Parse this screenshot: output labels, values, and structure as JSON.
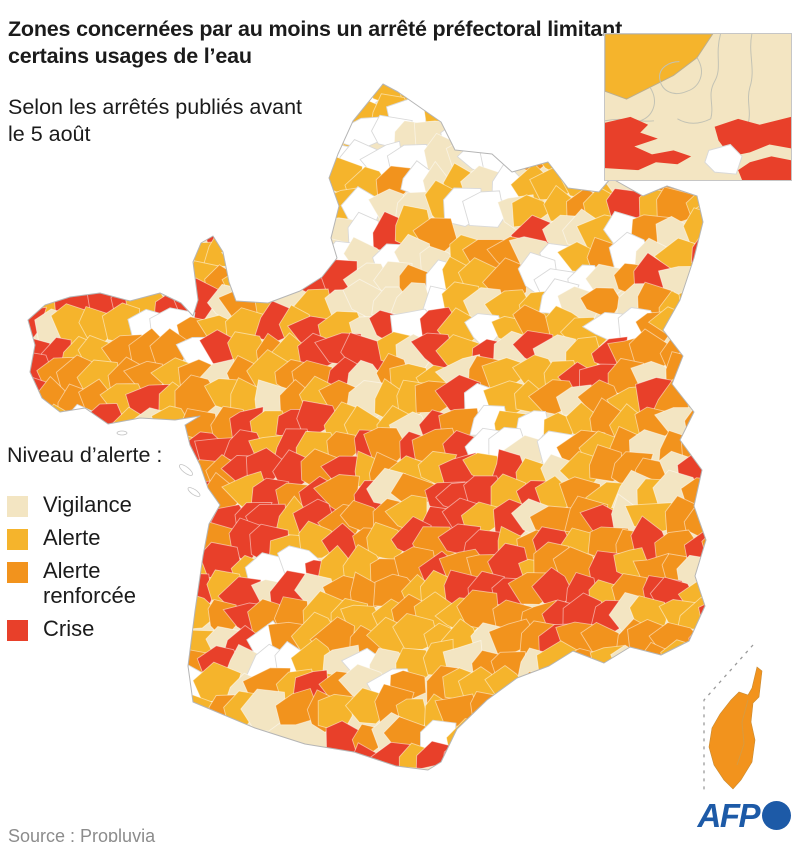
{
  "header": {
    "title": "Zones concernées par au moins un arrêté préfectoral limitant certains usages de l’eau",
    "subtitle": "Selon les arrêtés publiés avant le 5 août"
  },
  "legend": {
    "title": "Niveau d’alerte :",
    "items": [
      {
        "id": "vigilance",
        "label": "Vigilance",
        "color": "#F3E5C2"
      },
      {
        "id": "alerte",
        "label": "Alerte",
        "color": "#F5B42C"
      },
      {
        "id": "alerte-renforcee",
        "label": "Alerte renforcée",
        "color": "#F2931D"
      },
      {
        "id": "crise",
        "label": "Crise",
        "color": "#E8402A"
      }
    ]
  },
  "footer": {
    "source": "Source : Propluvia",
    "logo_text": "AFP",
    "logo_color": "#1D5AA7"
  },
  "map": {
    "colors": {
      "none": "#FFFFFF",
      "vigilance": "#F3E5C2",
      "alerte": "#F5B42C",
      "renforcee": "#F2931D",
      "crise": "#E8402A"
    },
    "border_color": "#b5b5b5",
    "cell": 24,
    "corsica_level": "renforcee",
    "regions": [
      {
        "name": "nord",
        "x": [
          300,
          500
        ],
        "y": [
          78,
          132
        ],
        "w": {
          "alerte": 45,
          "crise": 12,
          "none": 22,
          "vigilance": 16,
          "renforcee": 5
        }
      },
      {
        "name": "picardie-haute-normandie",
        "x": [
          280,
          520
        ],
        "y": [
          132,
          232
        ],
        "w": {
          "none": 45,
          "vigilance": 32,
          "alerte": 18,
          "renforcee": 5
        }
      },
      {
        "name": "champagne-nord",
        "x": [
          520,
          640
        ],
        "y": [
          132,
          252
        ],
        "w": {
          "vigilance": 25,
          "alerte": 40,
          "renforcee": 20,
          "none": 10,
          "crise": 5
        }
      },
      {
        "name": "alsace-lorraine-est",
        "x": [
          640,
          724
        ],
        "y": [
          140,
          340
        ],
        "w": {
          "alerte": 45,
          "renforcee": 35,
          "vigilance": 15,
          "crise": 5
        }
      },
      {
        "name": "ile-de-france",
        "x": [
          320,
          452
        ],
        "y": [
          232,
          332
        ],
        "w": {
          "none": 32,
          "vigilance": 28,
          "alerte": 20,
          "crise": 14,
          "renforcee": 6
        }
      },
      {
        "name": "champagne-sud",
        "x": [
          452,
          640
        ],
        "y": [
          252,
          342
        ],
        "w": {
          "none": 25,
          "vigilance": 20,
          "alerte": 32,
          "renforcee": 18,
          "crise": 5
        }
      },
      {
        "name": "normandie-ouest",
        "x": [
          120,
          320
        ],
        "y": [
          228,
          332
        ],
        "w": {
          "alerte": 35,
          "renforcee": 28,
          "vigilance": 15,
          "crise": 16,
          "none": 6
        }
      },
      {
        "name": "bretagne",
        "x": [
          18,
          230
        ],
        "y": [
          276,
          432
        ],
        "w": {
          "renforcee": 45,
          "alerte": 28,
          "crise": 17,
          "vigilance": 5,
          "none": 5
        }
      },
      {
        "name": "maine-anjou",
        "x": [
          230,
          340
        ],
        "y": [
          332,
          432
        ],
        "w": {
          "crise": 36,
          "renforcee": 30,
          "alerte": 24,
          "vigilance": 10
        }
      },
      {
        "name": "val-de-loire",
        "x": [
          340,
          480
        ],
        "y": [
          332,
          452
        ],
        "w": {
          "crise": 30,
          "renforcee": 26,
          "alerte": 24,
          "vigilance": 15,
          "none": 5
        }
      },
      {
        "name": "bourgogne",
        "x": [
          480,
          580
        ],
        "y": [
          342,
          452
        ],
        "w": {
          "alerte": 34,
          "renforcee": 26,
          "crise": 18,
          "none": 12,
          "vigilance": 10
        }
      },
      {
        "name": "franche-comte",
        "x": [
          580,
          724
        ],
        "y": [
          340,
          472
        ],
        "w": {
          "renforcee": 45,
          "alerte": 25,
          "crise": 20,
          "vigilance": 10
        }
      },
      {
        "name": "poitou-vendee",
        "x": [
          175,
          340
        ],
        "y": [
          432,
          562
        ],
        "w": {
          "crise": 45,
          "renforcee": 25,
          "alerte": 20,
          "vigilance": 5,
          "none": 5
        }
      },
      {
        "name": "limousin-auvergne",
        "x": [
          340,
          560
        ],
        "y": [
          452,
          562
        ],
        "w": {
          "crise": 36,
          "renforcee": 30,
          "alerte": 24,
          "vigilance": 10
        }
      },
      {
        "name": "rhone-alpes",
        "x": [
          560,
          724
        ],
        "y": [
          472,
          602
        ],
        "w": {
          "crise": 40,
          "renforcee": 30,
          "alerte": 15,
          "vigilance": 15
        }
      },
      {
        "name": "aquitaine",
        "x": [
          165,
          340
        ],
        "y": [
          562,
          734
        ],
        "w": {
          "none": 28,
          "alerte": 26,
          "renforcee": 20,
          "crise": 14,
          "vigilance": 12
        }
      },
      {
        "name": "midi-pyrenees",
        "x": [
          340,
          470
        ],
        "y": [
          562,
          790
        ],
        "w": {
          "alerte": 40,
          "renforcee": 28,
          "crise": 16,
          "vigilance": 10,
          "none": 6
        }
      },
      {
        "name": "languedoc",
        "x": [
          470,
          580
        ],
        "y": [
          562,
          770
        ],
        "w": {
          "renforcee": 34,
          "crise": 30,
          "alerte": 26,
          "vigilance": 10
        }
      },
      {
        "name": "provence",
        "x": [
          580,
          724
        ],
        "y": [
          602,
          724
        ],
        "w": {
          "crise": 40,
          "renforcee": 28,
          "alerte": 16,
          "vigilance": 10,
          "none": 6
        }
      }
    ]
  }
}
